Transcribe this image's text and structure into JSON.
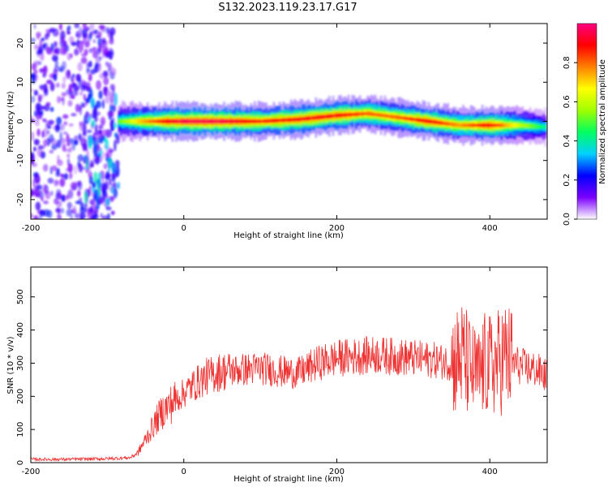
{
  "title": "S132.2023.119.23.17.G17",
  "chart_data": [
    {
      "type": "heatmap",
      "title": "S132.2023.119.23.17.G17",
      "xlabel": "Height of straight line (km)",
      "ylabel": "Frequency (Hz)",
      "xlim": [
        -200,
        475
      ],
      "ylim": [
        -25,
        25
      ],
      "x_ticks": [
        -200,
        0,
        200,
        400
      ],
      "y_ticks": [
        -20,
        -10,
        0,
        10,
        20
      ],
      "colorbar": {
        "label": "Normalized spectral amplitude",
        "range": [
          0.0,
          1.0
        ],
        "ticks": [
          0.0,
          0.2,
          0.4,
          0.6,
          0.8
        ],
        "tick_labels": [
          "0.0",
          "0.2",
          "0.4",
          "0.6",
          "0.8"
        ],
        "colors": [
          "#ffffff",
          "#7b00ff",
          "#0000ff",
          "#00d0ff",
          "#00ff60",
          "#a0ff00",
          "#ffff00",
          "#ff8000",
          "#ff0000",
          "#ff0080"
        ]
      },
      "ridge": {
        "x": [
          -85,
          -60,
          -20,
          0,
          50,
          100,
          150,
          200,
          240,
          280,
          320,
          360,
          400,
          440,
          475
        ],
        "freq": [
          0,
          0,
          0,
          0,
          0,
          0,
          0.5,
          1.5,
          2.0,
          1.0,
          0,
          -1.0,
          -1.0,
          -1.0,
          -1.5
        ],
        "amplitude": [
          0.5,
          0.7,
          0.9,
          0.95,
          0.95,
          0.85,
          0.9,
          0.9,
          0.8,
          0.8,
          0.9,
          0.75,
          0.9,
          0.6,
          0.4
        ]
      },
      "noise_region": {
        "x_range": [
          -200,
          -90
        ],
        "freq_range": [
          -25,
          25
        ],
        "amplitude": 0.2
      }
    },
    {
      "type": "line",
      "xlabel": "Height of straight line (km)",
      "ylabel": "SNR (10 * v/v)",
      "xlim": [
        -200,
        475
      ],
      "ylim": [
        0,
        590
      ],
      "x_ticks": [
        -200,
        0,
        200,
        400
      ],
      "y_ticks": [
        0,
        100,
        200,
        300,
        400,
        500
      ],
      "color": "#ee3333",
      "series": [
        {
          "x": [
            -200,
            -150,
            -100,
            -70,
            -60,
            -50,
            -40,
            -30,
            -20,
            -10,
            0,
            10,
            20,
            30,
            50,
            75,
            100,
            125,
            150,
            175,
            200,
            225,
            250,
            275,
            300,
            325,
            350,
            365,
            375,
            385,
            395,
            400,
            410,
            420,
            440,
            460,
            475
          ],
          "y": [
            10,
            10,
            12,
            15,
            30,
            70,
            110,
            150,
            170,
            190,
            210,
            230,
            245,
            260,
            275,
            280,
            285,
            275,
            270,
            300,
            315,
            320,
            325,
            320,
            315,
            310,
            300,
            320,
            280,
            260,
            300,
            290,
            300,
            320,
            290,
            280,
            260
          ]
        }
      ]
    }
  ]
}
